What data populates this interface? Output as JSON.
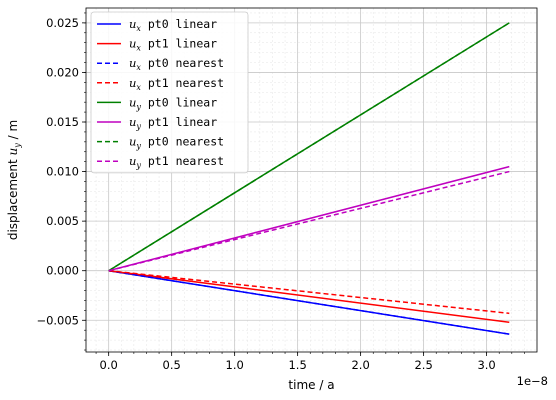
{
  "chart_data": {
    "type": "line",
    "xlabel": "time / a",
    "ylabel_prefix": "displacement ",
    "ylabel_sym": "u",
    "ylabel_sub": "y",
    "ylabel_suffix": " / m",
    "x_offset_label": "1e−8",
    "xlim": [
      -0.18,
      3.4
    ],
    "ylim": [
      -0.0082,
      0.0265
    ],
    "x_ticks": [
      0.0,
      0.5,
      1.0,
      1.5,
      2.0,
      2.5,
      3.0
    ],
    "x_tick_labels": [
      "0.0",
      "0.5",
      "1.0",
      "1.5",
      "2.0",
      "2.5",
      "3.0"
    ],
    "y_ticks": [
      -0.005,
      0.0,
      0.005,
      0.01,
      0.015,
      0.02,
      0.025
    ],
    "y_tick_labels": [
      "−0.005",
      "0.000",
      "0.005",
      "0.010",
      "0.015",
      "0.020",
      "0.025"
    ],
    "grid": true,
    "minor_grid": true,
    "legend_position": "top-left",
    "series": [
      {
        "name": "pt0 linear",
        "sym": "u",
        "sub": "x",
        "color": "#0000ff",
        "style": "solid",
        "x": [
          0.0,
          3.18
        ],
        "y": [
          0.0,
          -0.0064
        ]
      },
      {
        "name": "pt1 linear",
        "sym": "u",
        "sub": "x",
        "color": "#ff0000",
        "style": "solid",
        "x": [
          0.0,
          3.18
        ],
        "y": [
          0.0,
          -0.0052
        ]
      },
      {
        "name": "pt0 nearest",
        "sym": "u",
        "sub": "x",
        "color": "#0000ff",
        "style": "dashed",
        "x": [
          0.0,
          3.18
        ],
        "y": [
          0.0,
          -0.0064
        ]
      },
      {
        "name": "pt1 nearest",
        "sym": "u",
        "sub": "x",
        "color": "#ff0000",
        "style": "dashed",
        "x": [
          0.0,
          3.18
        ],
        "y": [
          0.0,
          -0.0043
        ]
      },
      {
        "name": "pt0 linear",
        "sym": "u",
        "sub": "y",
        "color": "#008000",
        "style": "solid",
        "x": [
          0.0,
          3.18
        ],
        "y": [
          0.0,
          0.025
        ]
      },
      {
        "name": "pt1 linear",
        "sym": "u",
        "sub": "y",
        "color": "#bf00bf",
        "style": "solid",
        "x": [
          0.0,
          3.18
        ],
        "y": [
          0.0,
          0.0105
        ]
      },
      {
        "name": "pt0 nearest",
        "sym": "u",
        "sub": "y",
        "color": "#008000",
        "style": "dashed",
        "x": [
          0.0,
          3.18
        ],
        "y": [
          0.0,
          0.025
        ]
      },
      {
        "name": "pt1 nearest",
        "sym": "u",
        "sub": "y",
        "color": "#bf00bf",
        "style": "dashed",
        "x": [
          0.0,
          3.18
        ],
        "y": [
          0.0,
          0.01
        ]
      }
    ]
  }
}
